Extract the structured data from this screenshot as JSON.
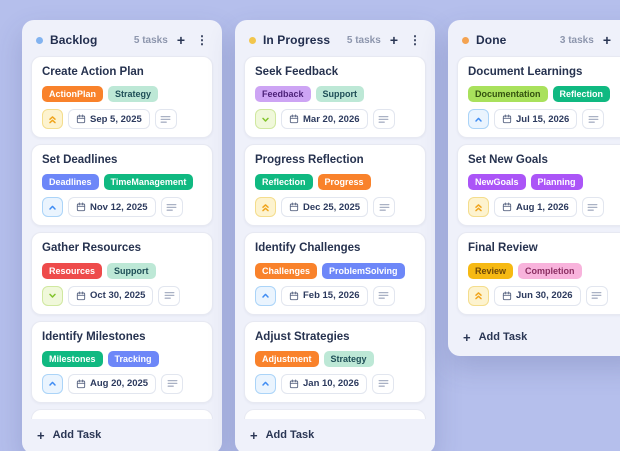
{
  "board": {
    "columns": [
      {
        "id": "backlog",
        "name": "Backlog",
        "dot_color": "#82b3f0",
        "task_count": "5 tasks",
        "has_partial_card": true,
        "add_task_label": "Add Task",
        "cards": [
          {
            "title": "Create Action Plan",
            "tags": [
              {
                "label": "ActionPlan",
                "bg": "#f9822b",
                "fg": "#ffffff"
              },
              {
                "label": "Strategy",
                "bg": "#bde8d6",
                "fg": "#1e4e57"
              }
            ],
            "priority": "high",
            "date": "Sep 5, 2025"
          },
          {
            "title": "Set Deadlines",
            "tags": [
              {
                "label": "Deadlines",
                "bg": "#6d87f8",
                "fg": "#ffffff"
              },
              {
                "label": "TimeManagement",
                "bg": "#10b981",
                "fg": "#ffffff"
              }
            ],
            "priority": "medium",
            "date": "Nov 12, 2025"
          },
          {
            "title": "Gather Resources",
            "tags": [
              {
                "label": "Resources",
                "bg": "#ee4b4b",
                "fg": "#ffffff"
              },
              {
                "label": "Support",
                "bg": "#bde8d6",
                "fg": "#1e4e57"
              }
            ],
            "priority": "low",
            "date": "Oct 30, 2025"
          },
          {
            "title": "Identify Milestones",
            "tags": [
              {
                "label": "Milestones",
                "bg": "#10b981",
                "fg": "#ffffff"
              },
              {
                "label": "Tracking",
                "bg": "#6d87f8",
                "fg": "#ffffff"
              }
            ],
            "priority": "medium",
            "date": "Aug 20, 2025"
          }
        ]
      },
      {
        "id": "in-progress",
        "name": "In Progress",
        "dot_color": "#f2c64d",
        "task_count": "5 tasks",
        "has_partial_card": true,
        "add_task_label": "Add Task",
        "cards": [
          {
            "title": "Seek Feedback",
            "tags": [
              {
                "label": "Feedback",
                "bg": "#cda4f4",
                "fg": "#4c2178"
              },
              {
                "label": "Support",
                "bg": "#bde8d6",
                "fg": "#1e4e57"
              }
            ],
            "priority": "low",
            "date": "Mar 20, 2026"
          },
          {
            "title": "Progress Reflection",
            "tags": [
              {
                "label": "Reflection",
                "bg": "#10b981",
                "fg": "#ffffff"
              },
              {
                "label": "Progress",
                "bg": "#f9822b",
                "fg": "#ffffff"
              }
            ],
            "priority": "high",
            "date": "Dec 25, 2025"
          },
          {
            "title": "Identify Challenges",
            "tags": [
              {
                "label": "Challenges",
                "bg": "#f9822b",
                "fg": "#ffffff"
              },
              {
                "label": "ProblemSolving",
                "bg": "#6d87f8",
                "fg": "#ffffff"
              }
            ],
            "priority": "medium",
            "date": "Feb 15, 2026"
          },
          {
            "title": "Adjust Strategies",
            "tags": [
              {
                "label": "Adjustment",
                "bg": "#f9822b",
                "fg": "#ffffff"
              },
              {
                "label": "Strategy",
                "bg": "#bde8d6",
                "fg": "#1e4e57"
              }
            ],
            "priority": "medium",
            "date": "Jan 10, 2026"
          }
        ]
      },
      {
        "id": "done",
        "name": "Done",
        "dot_color": "#f4a351",
        "task_count": "3 tasks",
        "has_partial_card": false,
        "add_task_label": "Add Task",
        "cards": [
          {
            "title": "Document Learnings",
            "tags": [
              {
                "label": "Documentation",
                "bg": "#a9e15c",
                "fg": "#33520f"
              },
              {
                "label": "Reflection",
                "bg": "#10b981",
                "fg": "#ffffff"
              }
            ],
            "priority": "medium",
            "date": "Jul 15, 2026"
          },
          {
            "title": "Set New Goals",
            "tags": [
              {
                "label": "NewGoals",
                "bg": "#ab55f7",
                "fg": "#ffffff"
              },
              {
                "label": "Planning",
                "bg": "#ab55f7",
                "fg": "#ffffff"
              }
            ],
            "priority": "high",
            "date": "Aug 1, 2026"
          },
          {
            "title": "Final Review",
            "tags": [
              {
                "label": "Review",
                "bg": "#f6b913",
                "fg": "#6f4808"
              },
              {
                "label": "Completion",
                "bg": "#f8b3dc",
                "fg": "#8c2f63"
              }
            ],
            "priority": "high",
            "date": "Jun 30, 2026"
          }
        ]
      }
    ]
  },
  "icons": {
    "add_icon": "+",
    "menu_icon": "⋮",
    "add_task_plus": "+"
  },
  "priority_levels": {
    "high": {
      "icon": "chevrons-up-icon",
      "bg": "#fdf3cf",
      "border": "#f4dd8d",
      "fg": "#f0a51e"
    },
    "medium": {
      "icon": "chevron-up-icon",
      "bg": "#eaf4fe",
      "border": "#abd4f8",
      "fg": "#3f8cf3"
    },
    "low": {
      "icon": "chevron-down-icon",
      "bg": "#f0f8da",
      "border": "#d0e8a0",
      "fg": "#82c32c"
    }
  }
}
